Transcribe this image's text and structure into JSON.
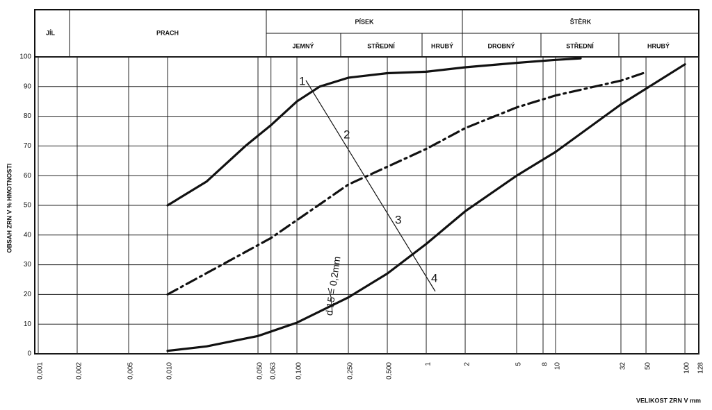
{
  "chart_data": {
    "type": "line",
    "log_x": true,
    "grid": true,
    "header": {
      "top": [
        "JÍL",
        "PRACH",
        "PÍSEK",
        "ŠTĚRK"
      ],
      "sub": [
        "JEMNÝ",
        "STŘEDNÍ",
        "HRUBÝ",
        "DROBNÝ",
        "STŘEDNÍ",
        "HRUBÝ"
      ]
    },
    "y_label": "OBSAH ZRN V % HMOTNOSTI",
    "x_label": "VELIKOST ZRN V mm",
    "annotations": [
      "1",
      "2",
      "3",
      "4",
      "d 15 = 0,2mm"
    ],
    "xlim": [
      0.001,
      128
    ],
    "ylim": [
      0,
      100
    ],
    "xticks": [
      {
        "value": 0.001,
        "label": "0,001"
      },
      {
        "value": 0.002,
        "label": "0,002"
      },
      {
        "value": 0.005,
        "label": "0,005"
      },
      {
        "value": 0.01,
        "label": "0,010"
      },
      {
        "value": 0.05,
        "label": "0,050"
      },
      {
        "value": 0.063,
        "label": "0,063"
      },
      {
        "value": 0.1,
        "label": "0,100"
      },
      {
        "value": 0.25,
        "label": "0,250"
      },
      {
        "value": 0.5,
        "label": "0,500"
      },
      1,
      2,
      5,
      8,
      10,
      32,
      50,
      100,
      128
    ],
    "yticks": [
      0,
      10,
      20,
      30,
      40,
      50,
      60,
      70,
      80,
      90,
      100
    ],
    "series": [
      {
        "color": "#111111",
        "style": "solid",
        "x": [
          0.01,
          0.02,
          0.04,
          0.063,
          0.1,
          0.15,
          0.25,
          0.5,
          1,
          2,
          5,
          10,
          15.6
        ],
        "values": [
          50,
          58,
          70,
          77,
          85,
          90,
          93,
          94.5,
          95,
          96.5,
          98,
          99,
          99.5
        ]
      },
      {
        "color": "#111111",
        "style": "dashdot",
        "x": [
          0.01,
          0.063,
          0.25,
          1,
          2,
          5,
          10,
          32,
          47.5
        ],
        "values": [
          20,
          39,
          57,
          69,
          76,
          83,
          87,
          92,
          94.5
        ]
      },
      {
        "color": "#111111",
        "style": "solid",
        "x": [
          0.01,
          0.02,
          0.05,
          0.1,
          0.25,
          0.5,
          1,
          2,
          5,
          10,
          32,
          100
        ],
        "values": [
          1,
          2.5,
          6,
          10.5,
          19,
          27,
          37,
          48,
          60,
          68,
          84,
          97.5
        ]
      }
    ]
  }
}
